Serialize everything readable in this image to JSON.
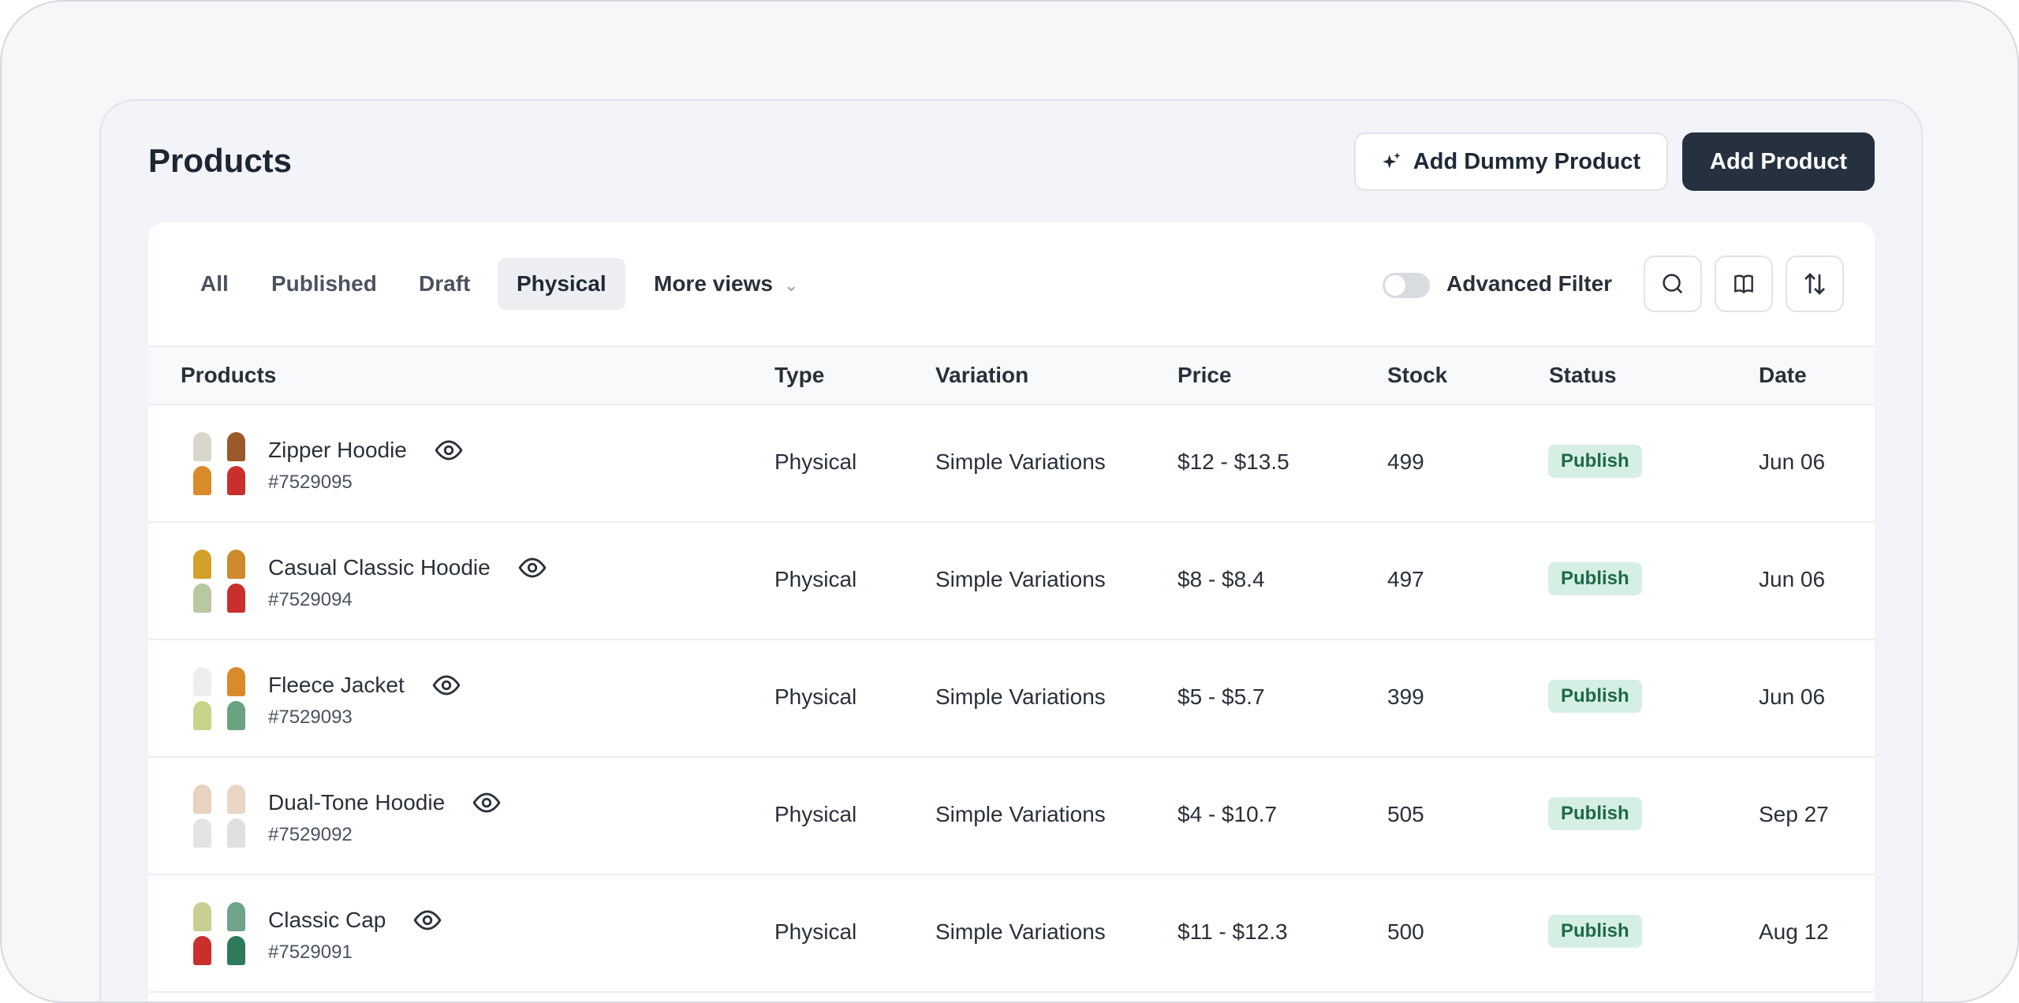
{
  "header": {
    "title": "Products",
    "dummy_label": "Add Dummy Product",
    "add_label": "Add Product"
  },
  "tabs": [
    {
      "label": "All"
    },
    {
      "label": "Published"
    },
    {
      "label": "Draft"
    },
    {
      "label": "Physical",
      "active": true
    },
    {
      "label": "More views"
    }
  ],
  "toolbar": {
    "advanced_filter_label": "Advanced Filter",
    "advanced_filter_on": false,
    "icons": [
      "search-icon",
      "book-icon",
      "sort-icon"
    ]
  },
  "columns": [
    "Products",
    "Type",
    "Variation",
    "Price",
    "Stock",
    "Status",
    "Date"
  ],
  "rows": [
    {
      "name": "Zipper Hoodie",
      "id": "#7529095",
      "type": "Physical",
      "variation": "Simple Variations",
      "price": "$12 - $13.5",
      "stock": "499",
      "status": "Publish",
      "date": "Jun 06",
      "colors": [
        "#d9d6cc",
        "#9b5a2a",
        "#d98a2a",
        "#c9302c"
      ]
    },
    {
      "name": "Casual Classic Hoodie",
      "id": "#7529094",
      "type": "Physical",
      "variation": "Simple Variations",
      "price": "$8 - $8.4",
      "stock": "497",
      "status": "Publish",
      "date": "Jun 06",
      "colors": [
        "#d4a02a",
        "#cf8a2e",
        "#b9c8a0",
        "#c9302c"
      ]
    },
    {
      "name": "Fleece Jacket",
      "id": "#7529093",
      "type": "Physical",
      "variation": "Simple Variations",
      "price": "$5 - $5.7",
      "stock": "399",
      "status": "Publish",
      "date": "Jun 06",
      "colors": [
        "#eeeeee",
        "#d98a2a",
        "#c9d48a",
        "#6aa380"
      ]
    },
    {
      "name": "Dual-Tone Hoodie",
      "id": "#7529092",
      "type": "Physical",
      "variation": "Simple Variations",
      "price": "$4 - $10.7",
      "stock": "505",
      "status": "Publish",
      "date": "Sep 27",
      "colors": [
        "#e8d2c0",
        "#e9d6c4",
        "#e4e4e4",
        "#e0e0e0"
      ]
    },
    {
      "name": "Classic Cap",
      "id": "#7529091",
      "type": "Physical",
      "variation": "Simple Variations",
      "price": "$11 - $12.3",
      "stock": "500",
      "status": "Publish",
      "date": "Aug 12",
      "colors": [
        "#c8cf90",
        "#6fa48a",
        "#c9302c",
        "#2e7a5a"
      ]
    }
  ],
  "colors": {
    "primary": "#263140",
    "badge_bg": "#d6efe4",
    "badge_text": "#1d6a47"
  }
}
